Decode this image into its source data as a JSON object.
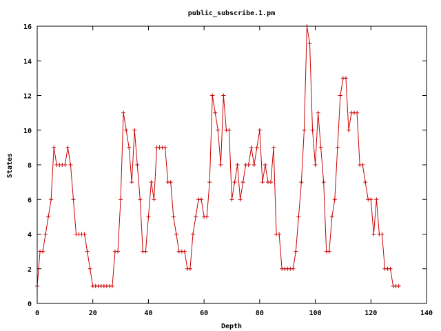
{
  "colors": {
    "series": "#cc0000",
    "axis": "#000000",
    "background": "#ffffff"
  },
  "chart_data": {
    "type": "line",
    "title": "public_subscribe.1.pm",
    "xlabel": "Depth",
    "ylabel": "States",
    "xlim": [
      0,
      140
    ],
    "ylim": [
      0,
      16
    ],
    "xticks": [
      0,
      20,
      40,
      60,
      80,
      100,
      120,
      140
    ],
    "yticks": [
      0,
      2,
      4,
      6,
      8,
      10,
      12,
      14,
      16
    ],
    "grid": false,
    "legend": "none",
    "marker": "plus",
    "series": [
      {
        "x": [
          0,
          1,
          2,
          3,
          4,
          5,
          6,
          7,
          8,
          9,
          10,
          11,
          12,
          13,
          14,
          15,
          16,
          17,
          18,
          19,
          20,
          21,
          22,
          23,
          24,
          25,
          26,
          27,
          28,
          29,
          30,
          31,
          32,
          33,
          34,
          35,
          36,
          37,
          38,
          39,
          40,
          41,
          42,
          43,
          44,
          45,
          46,
          47,
          48,
          49,
          50,
          51,
          52,
          53,
          54,
          55,
          56,
          57,
          58,
          59,
          60,
          61,
          62,
          63,
          64,
          65,
          66,
          67,
          68,
          69,
          70,
          71,
          72,
          73,
          74,
          75,
          76,
          77,
          78,
          79,
          80,
          81,
          82,
          83,
          84,
          85,
          86,
          87,
          88,
          89,
          90,
          91,
          92,
          93,
          94,
          95,
          96,
          97,
          98,
          99,
          100,
          101,
          102,
          103,
          104,
          105,
          106,
          107,
          108,
          109,
          110,
          111,
          112,
          113,
          114,
          115,
          116,
          117,
          118,
          119,
          120,
          121,
          122,
          123,
          124,
          125,
          126,
          127,
          128,
          129,
          130
        ],
        "values": [
          1,
          3,
          3,
          4,
          5,
          6,
          9,
          8,
          8,
          8,
          8,
          9,
          8,
          6,
          4,
          4,
          4,
          4,
          3,
          2,
          1,
          1,
          1,
          1,
          1,
          1,
          1,
          1,
          3,
          3,
          6,
          11,
          10,
          9,
          7,
          10,
          8,
          6,
          3,
          3,
          5,
          7,
          6,
          9,
          9,
          9,
          9,
          7,
          7,
          5,
          4,
          3,
          3,
          3,
          2,
          2,
          4,
          5,
          6,
          6,
          5,
          5,
          7,
          12,
          11,
          10,
          8,
          12,
          10,
          10,
          6,
          7,
          8,
          6,
          7,
          8,
          8,
          9,
          8,
          9,
          10,
          7,
          8,
          7,
          7,
          9,
          4,
          4,
          2,
          2,
          2,
          2,
          2,
          3,
          5,
          7,
          10,
          16,
          15,
          10,
          8,
          11,
          9,
          7,
          3,
          3,
          5,
          6,
          9,
          12,
          13,
          13,
          10,
          11,
          11,
          11,
          8,
          8,
          7,
          6,
          6,
          4,
          6,
          4,
          4,
          2,
          2,
          2,
          1,
          1,
          1
        ]
      }
    ]
  }
}
